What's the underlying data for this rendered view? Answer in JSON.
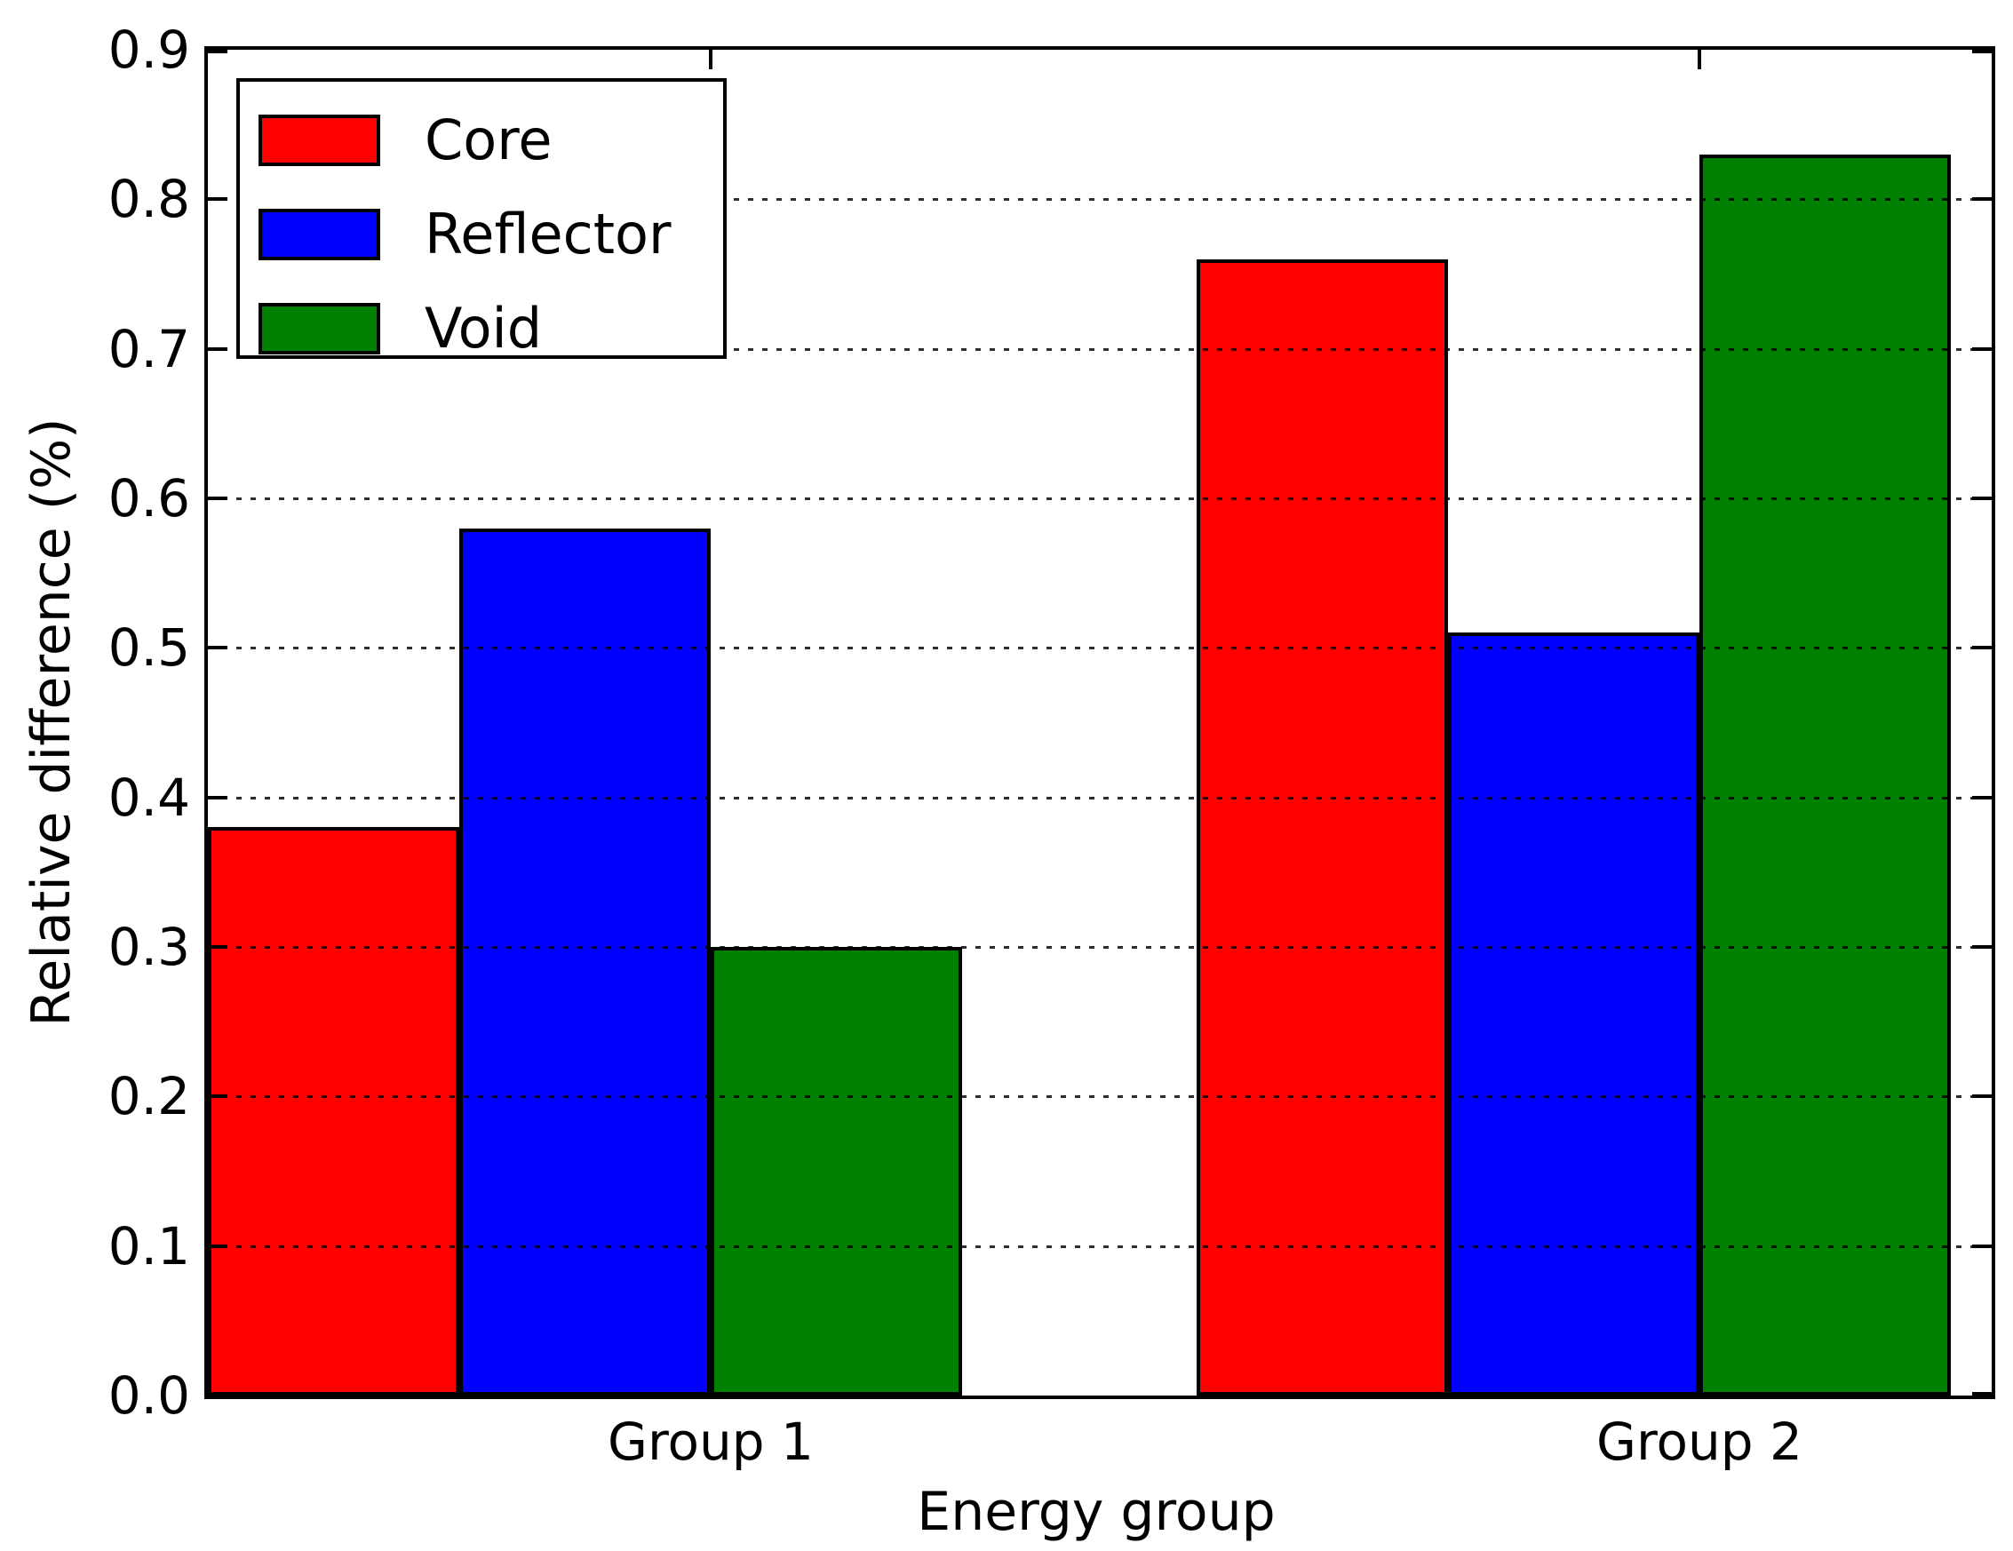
{
  "chart_data": {
    "type": "bar",
    "title": "",
    "xlabel": "Energy group",
    "ylabel": "Relative difference (%)",
    "categories": [
      "Group 1",
      "Group 2"
    ],
    "series": [
      {
        "name": "Core",
        "color": "#ff0000",
        "values": [
          0.38,
          0.76
        ]
      },
      {
        "name": "Reflector",
        "color": "#0000ff",
        "values": [
          0.58,
          0.51
        ]
      },
      {
        "name": "Void",
        "color": "#008000",
        "values": [
          0.3,
          0.83
        ]
      }
    ],
    "ylim": [
      0.0,
      0.9
    ],
    "yticks": [
      "0.0",
      "0.1",
      "0.2",
      "0.3",
      "0.4",
      "0.5",
      "0.6",
      "0.7",
      "0.8",
      "0.9"
    ],
    "grid": "horizontal-dotted-on-top",
    "legend_position": "upper-left",
    "bar_edge_color": "#000000",
    "axis_color": "#000000",
    "background_color": "#ffffff"
  }
}
